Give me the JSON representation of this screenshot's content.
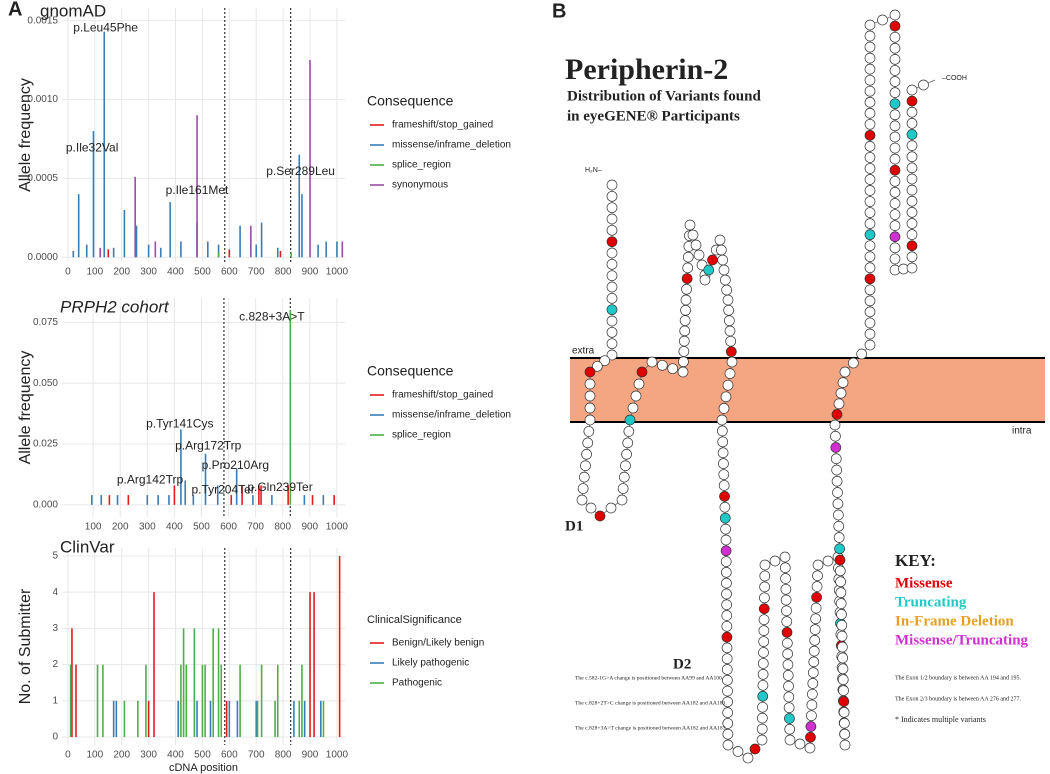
{
  "panels": [
    "A",
    "B"
  ],
  "chart_data": [
    {
      "type": "spike",
      "title": "gnomAD",
      "ylabel": "Allele frequency",
      "legend_title": "Consequence",
      "xlim": [
        -22,
        1030
      ],
      "xticks": [
        0,
        100,
        200,
        300,
        400,
        500,
        600,
        700,
        800,
        900,
        1000
      ],
      "ylim": [
        -3e-05,
        0.00158
      ],
      "yticks": [
        {
          "value": 0,
          "label": "0.0000"
        },
        {
          "value": 0.0005,
          "label": "0.0005"
        },
        {
          "value": 0.001,
          "label": "0.0010"
        },
        {
          "value": 0.0015,
          "label": "0.0015"
        }
      ],
      "grid": true,
      "vlines": [
        583,
        828
      ],
      "series": [
        {
          "name": "frameshift/stop_gained",
          "color": "#e41a1c",
          "x": [
            150,
            600,
            790
          ],
          "values": [
            5e-05,
            5e-05,
            4e-05
          ]
        },
        {
          "name": "missense/inframe_deletion",
          "color": "#377eb8",
          "x": [
            20,
            40,
            70,
            95,
            135,
            170,
            210,
            255,
            300,
            345,
            380,
            420,
            480,
            520,
            560,
            640,
            700,
            720,
            780,
            860,
            870,
            930,
            960,
            1000
          ],
          "values": [
            4e-05,
            0.0004,
            8e-05,
            0.0008,
            0.00143,
            6e-05,
            0.0003,
            0.0002,
            8e-05,
            6e-05,
            0.00035,
            0.0001,
            0.00022,
            0.0001,
            8e-05,
            0.0002,
            8e-05,
            0.00022,
            6e-05,
            0.00065,
            0.0004,
            8e-05,
            0.0001,
            0.0001
          ]
        },
        {
          "name": "splice_region",
          "color": "#4daf4a",
          "x": [
            560,
            830
          ],
          "values": [
            3e-05,
            3e-05
          ]
        },
        {
          "name": "synonymous",
          "color": "#984ea3",
          "x": [
            120,
            250,
            325,
            480,
            680,
            900,
            1020
          ],
          "values": [
            6e-05,
            0.00051,
            0.0001,
            0.0009,
            0.0002,
            0.00125,
            0.0001
          ]
        }
      ],
      "annotations": [
        {
          "text": "p.Leu45Phe",
          "x": 140,
          "y": 0.00145,
          "color": "#377eb8"
        },
        {
          "text": "p.Ile32Val",
          "x": 90,
          "y": 0.00069,
          "color": "#377eb8"
        },
        {
          "text": "p.Ile161Met",
          "x": 480,
          "y": 0.00042,
          "color": "#377eb8"
        },
        {
          "text": "p.Ser289Leu",
          "x": 865,
          "y": 0.00054,
          "color": "#377eb8"
        }
      ]
    },
    {
      "type": "spike",
      "title": "PRPH2 cohort",
      "ylabel": "Allele frequency",
      "legend_title": "Consequence",
      "xlim": [
        -15,
        1030
      ],
      "xticks": [
        100,
        200,
        300,
        400,
        500,
        600,
        700,
        800,
        900,
        1000
      ],
      "ylim": [
        -0.005,
        0.085
      ],
      "yticks": [
        {
          "value": 0,
          "label": "0.000"
        },
        {
          "value": 0.025,
          "label": "0.025"
        },
        {
          "value": 0.05,
          "label": "0.050"
        },
        {
          "value": 0.075,
          "label": "0.075"
        }
      ],
      "grid": true,
      "vlines": [
        583,
        828
      ],
      "series": [
        {
          "name": "frameshift/stop_gained",
          "color": "#e41a1c",
          "x": [
            160,
            230,
            400,
            610,
            650,
            712,
            720,
            820,
            910,
            990
          ],
          "values": [
            0.004,
            0.004,
            0.008,
            0.004,
            0.008,
            0.008,
            0.008,
            0.008,
            0.004,
            0.004
          ]
        },
        {
          "name": "missense/inframe_deletion",
          "color": "#377eb8",
          "x": [
            95,
            130,
            190,
            300,
            340,
            380,
            424,
            440,
            470,
            515,
            560,
            630,
            690,
            760,
            880,
            950
          ],
          "values": [
            0.004,
            0.004,
            0.004,
            0.004,
            0.004,
            0.004,
            0.031,
            0.01,
            0.004,
            0.021,
            0.008,
            0.015,
            0.004,
            0.004,
            0.004,
            0.004
          ]
        },
        {
          "name": "splice_region",
          "color": "#4daf4a",
          "x": [
            828
          ],
          "values": [
            0.08
          ]
        }
      ],
      "annotations": [
        {
          "text": "c.828+3A>T",
          "x": 760,
          "y": 0.077,
          "color": "#4daf4a"
        },
        {
          "text": "p.Tyr141Cys",
          "x": 420,
          "y": 0.033,
          "color": "#377eb8"
        },
        {
          "text": "p.Arg172Trp",
          "x": 525,
          "y": 0.024,
          "color": "#377eb8"
        },
        {
          "text": "p.Pro210Arg",
          "x": 625,
          "y": 0.016,
          "color": "#377eb8"
        },
        {
          "text": "p.Arg142Trp",
          "x": 310,
          "y": 0.01,
          "color": "#377eb8"
        },
        {
          "text": "p.Tyr204Ter",
          "x": 580,
          "y": 0.006,
          "color": "#e41a1c"
        },
        {
          "text": "p.Gln239Ter",
          "x": 790,
          "y": 0.007,
          "color": "#e41a1c"
        }
      ]
    },
    {
      "type": "spike",
      "title": "ClinVar",
      "ylabel": "No. of Submitter",
      "xlabel": "cDNA position",
      "legend_title": "ClinicalSignificance",
      "xlim": [
        -22,
        1030
      ],
      "xticks": [
        0,
        100,
        200,
        300,
        400,
        500,
        600,
        700,
        800,
        900,
        1000
      ],
      "ylim": [
        -0.22,
        5.22
      ],
      "yticks": [
        0,
        1,
        2,
        3,
        4,
        5
      ],
      "grid": true,
      "vlines": [
        583,
        828
      ],
      "series": [
        {
          "name": "Benign/Likely benign",
          "color": "#e41a1c",
          "x": [
            15,
            30,
            300,
            320,
            590,
            900,
            915,
            1010
          ],
          "values": [
            3,
            2,
            1,
            4,
            1,
            4,
            4,
            5
          ]
        },
        {
          "name": "Likely pathogenic",
          "color": "#377eb8",
          "x": [
            170,
            180,
            410,
            480,
            530,
            600,
            630,
            700,
            840,
            880,
            940
          ],
          "values": [
            1,
            1,
            1,
            1,
            1,
            1,
            1,
            1,
            1,
            1,
            1
          ]
        },
        {
          "name": "Pathogenic",
          "color": "#4daf4a",
          "x": [
            10,
            110,
            130,
            210,
            260,
            290,
            420,
            430,
            440,
            470,
            500,
            510,
            540,
            560,
            570,
            640,
            705,
            720,
            770,
            780,
            860,
            870,
            950
          ],
          "values": [
            2,
            2,
            2,
            1,
            1,
            2,
            2,
            3,
            2,
            3,
            2,
            2,
            3,
            3,
            2,
            2,
            1,
            2,
            1,
            2,
            1,
            2,
            1
          ]
        }
      ],
      "annotations": []
    }
  ],
  "diagram": {
    "title": "Peripherin-2",
    "subtitle": [
      "Distribution of Variants found",
      "in eyeGENE® Participants"
    ],
    "labels": {
      "extra": "extra",
      "intra": "intra",
      "d1": "D1",
      "d2": "D2",
      "nterm": "H₂N–",
      "cterm": "–COOH"
    },
    "key": {
      "title": "KEY:",
      "items": [
        {
          "text": "Missense",
          "color": "#e00000"
        },
        {
          "text": "Truncating",
          "color": "#20c8c8"
        },
        {
          "text": "In-Frame Deletion",
          "color": "#e8a020"
        },
        {
          "text": "Missense/Truncating",
          "color": "#d030d0"
        }
      ]
    },
    "notes_left": [
      "The c.582-1G>A change is positioned between AA99 and AA100.",
      "The c.828+2T>C change is positioned between AA182 and AA183.",
      "The c.828+3A>T change is positioned between AA182 and AA183."
    ],
    "notes_right": [
      "The Exon 1/2 boundary is between AA 194 and 195.",
      "The Exon 2/3 boundary is between AA 276 and 277.",
      "* Indicates multiple variants"
    ]
  }
}
